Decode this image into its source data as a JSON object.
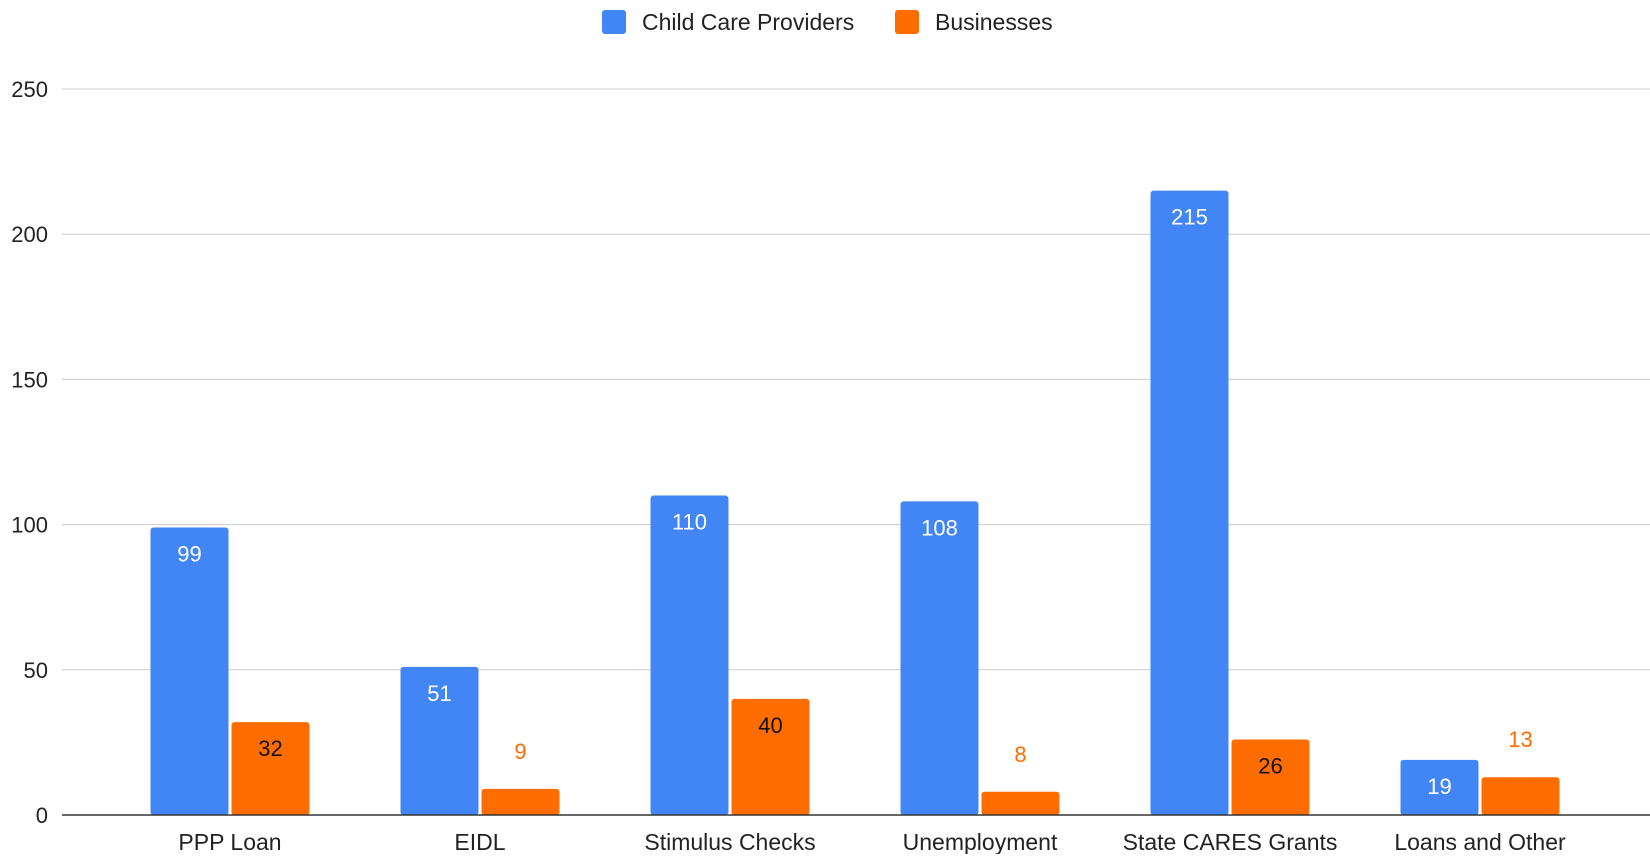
{
  "chart_data": {
    "type": "bar",
    "categories": [
      "PPP Loan",
      "EIDL",
      "Stimulus Checks",
      "Unemployment",
      "State CARES Grants",
      "Loans and Other"
    ],
    "series": [
      {
        "name": "Child Care Providers",
        "values": [
          99,
          51,
          110,
          108,
          215,
          19
        ],
        "color": "#4285f4",
        "label_color": "#ffffff"
      },
      {
        "name": "Businesses",
        "values": [
          32,
          9,
          40,
          8,
          26,
          13
        ],
        "color": "#ff6d01",
        "label_color": "#111111"
      }
    ],
    "ylim": [
      0,
      250
    ],
    "yticks": [
      0,
      50,
      100,
      150,
      200,
      250
    ],
    "grid": true,
    "legend": "top-center",
    "title": "",
    "xlabel": "",
    "ylabel": ""
  }
}
